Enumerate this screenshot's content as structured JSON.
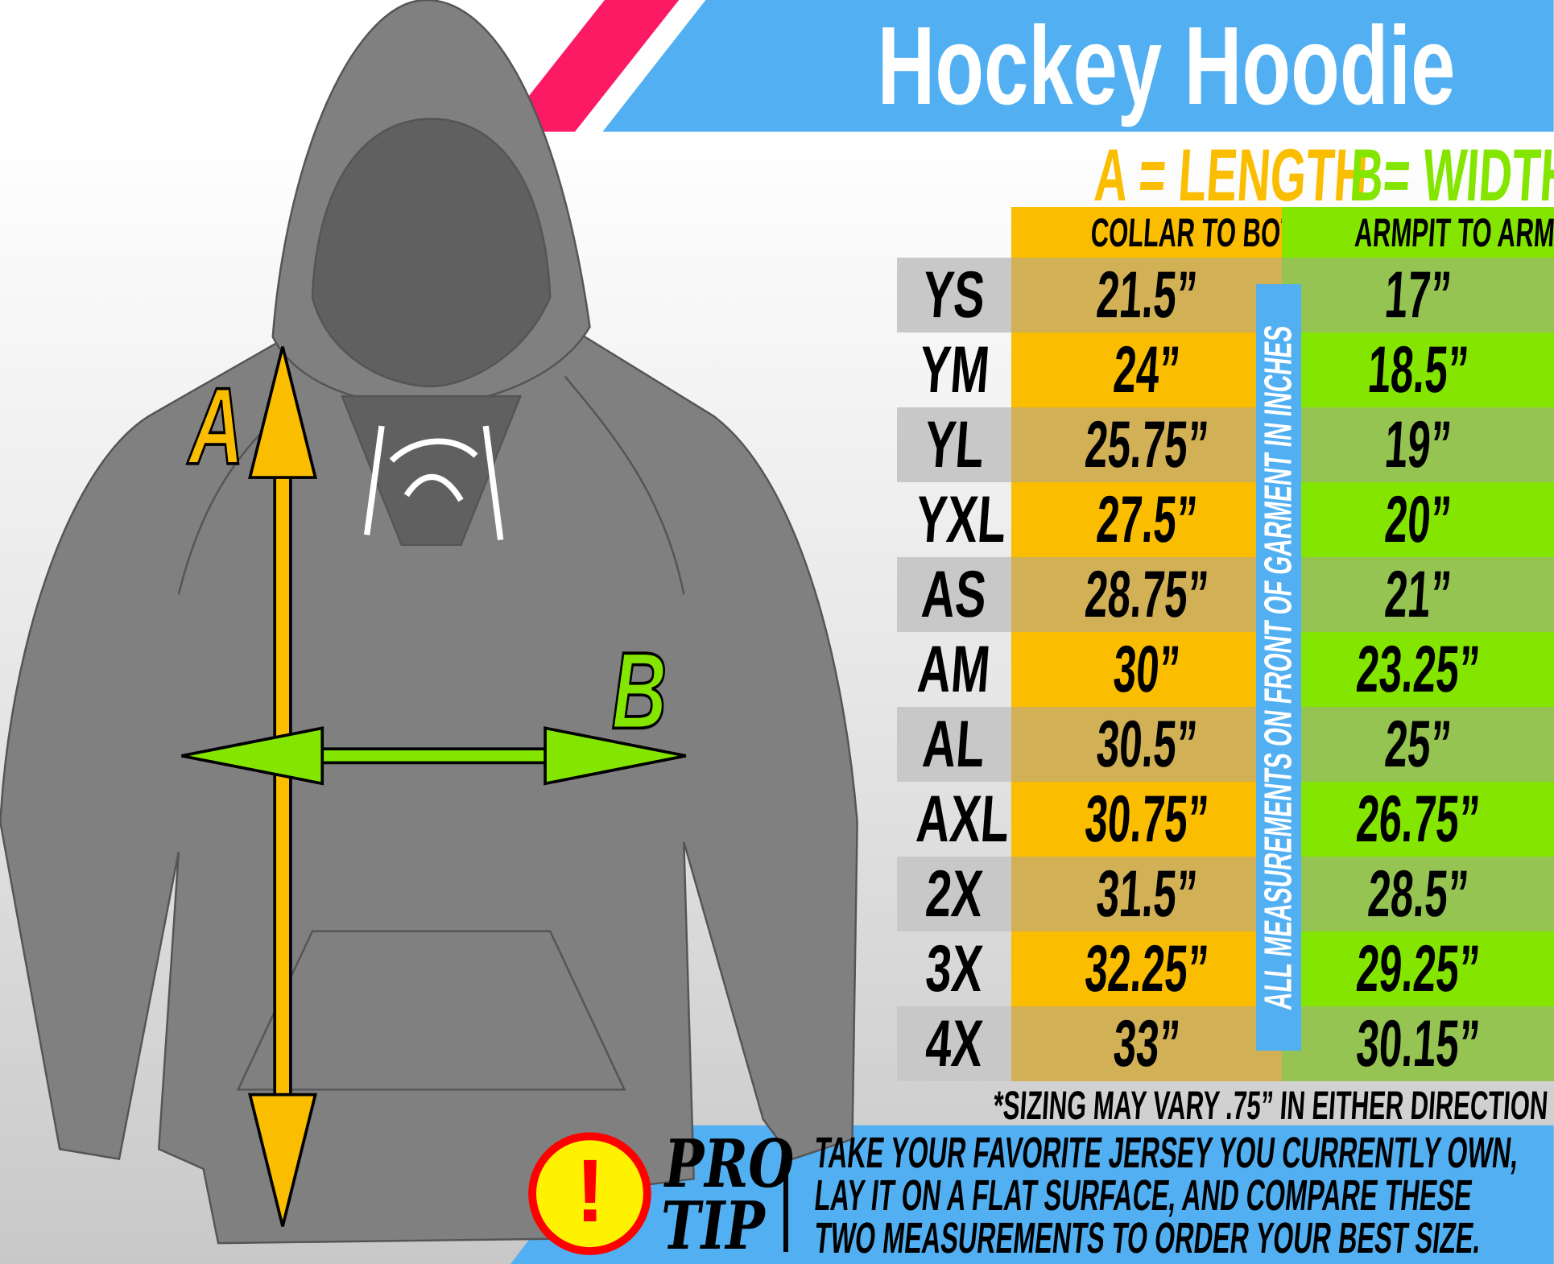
{
  "title": "Hockey Hoodie",
  "colors": {
    "banner_blue": "#52b0f2",
    "pink": "#fb1a63",
    "length_orange": "#fbbd00",
    "width_green": "#84e600",
    "hoodie_gray": "#808080"
  },
  "diagram": {
    "label_a": "A",
    "label_b": "B"
  },
  "headers": {
    "length_title": "A = LENGTH",
    "length_sub": "COLLAR TO BOTTOM",
    "width_title": "B= WIDTH",
    "width_sub": "ARMPIT TO ARMPIT"
  },
  "side_note": "ALL MEASUREMENTS ON FRONT OF GARMENT IN INCHES",
  "rows": [
    {
      "size": "YS",
      "length": "21.5”",
      "width": "17”"
    },
    {
      "size": "YM",
      "length": "24”",
      "width": "18.5”"
    },
    {
      "size": "YL",
      "length": "25.75”",
      "width": "19”"
    },
    {
      "size": "YXL",
      "length": "27.5”",
      "width": "20”"
    },
    {
      "size": "AS",
      "length": "28.75”",
      "width": "21”"
    },
    {
      "size": "AM",
      "length": "30”",
      "width": "23.25”"
    },
    {
      "size": "AL",
      "length": "30.5”",
      "width": "25”"
    },
    {
      "size": "AXL",
      "length": "30.75”",
      "width": "26.75”"
    },
    {
      "size": "2X",
      "length": "31.5”",
      "width": "28.5”"
    },
    {
      "size": "3X",
      "length": "32.25”",
      "width": "29.25”"
    },
    {
      "size": "4X",
      "length": "33”",
      "width": "30.15”"
    }
  ],
  "footnote": "*SIZING MAY VARY .75” IN EITHER DIRECTION",
  "pro_tip": {
    "icon": "exclamation-icon",
    "label_line1": "PRO",
    "label_line2": "TIP",
    "lines": [
      "TAKE YOUR FAVORITE JERSEY YOU CURRENTLY OWN,",
      "LAY IT ON A FLAT SURFACE, AND COMPARE THESE",
      "TWO MEASUREMENTS TO ORDER YOUR BEST SIZE."
    ]
  }
}
